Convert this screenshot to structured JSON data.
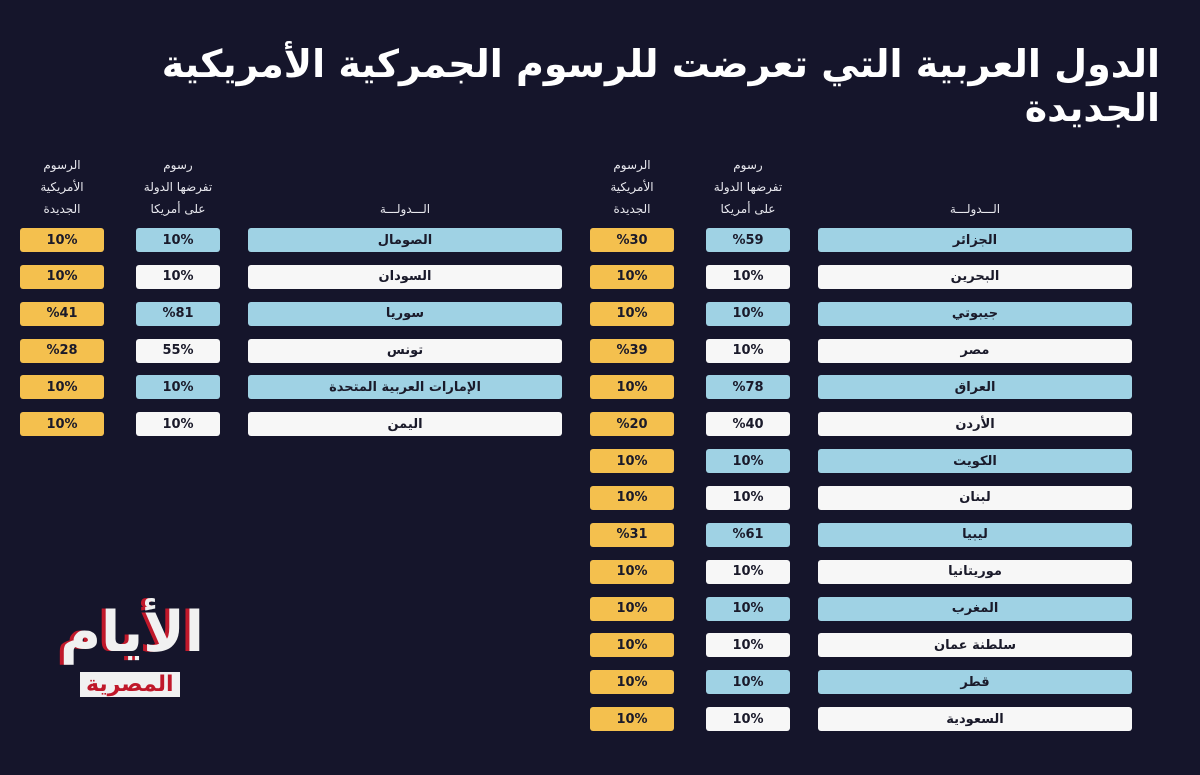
{
  "title": "الدول العربية التي تعرضت للرسوم الجمركية الأمريكية الجديدة",
  "tables": [
    {
      "headers": [
        "الـــدولـــة",
        "رسوم\nتفرضها الدولة\nعلى أمريكا",
        "الرسوم\nالأمريكية\nالجديدة"
      ],
      "rows": [
        [
          "الجزائر",
          "%59",
          "%30"
        ],
        [
          "البحرين",
          "10%",
          "10%"
        ],
        [
          "جيبوتي",
          "10%",
          "10%"
        ],
        [
          "مصر",
          "10%",
          "%39"
        ],
        [
          "العراق",
          "%78",
          "10%"
        ],
        [
          "الأردن",
          "%40",
          "%20"
        ],
        [
          "الكويت",
          "10%",
          "10%"
        ],
        [
          "لبنان",
          "10%",
          "10%"
        ],
        [
          "ليبيا",
          "%61",
          "%31"
        ],
        [
          "موريتانيا",
          "10%",
          "10%"
        ],
        [
          "المغرب",
          "10%",
          "10%"
        ],
        [
          "سلطنة عمان",
          "10%",
          "10%"
        ],
        [
          "قطر",
          "10%",
          "10%"
        ],
        [
          "السعودية",
          "10%",
          "10%"
        ]
      ]
    },
    {
      "headers": [
        "الـــدولـــة",
        "رسوم\nتفرضها الدولة\nعلى أمريكا",
        "الرسوم\nالأمريكية\nالجديدة"
      ],
      "rows": [
        [
          "الصومال",
          "10%",
          "10%"
        ],
        [
          "السودان",
          "10%",
          "10%"
        ],
        [
          "سوريا",
          "%81",
          "%41"
        ],
        [
          "تونس",
          "55%",
          "%28"
        ],
        [
          "الإمارات العربية المتحدة",
          "10%",
          "10%"
        ],
        [
          "اليمن",
          "10%",
          "10%"
        ]
      ]
    }
  ],
  "logo": {
    "line1": "الأيام",
    "line2": "المصرية"
  }
}
